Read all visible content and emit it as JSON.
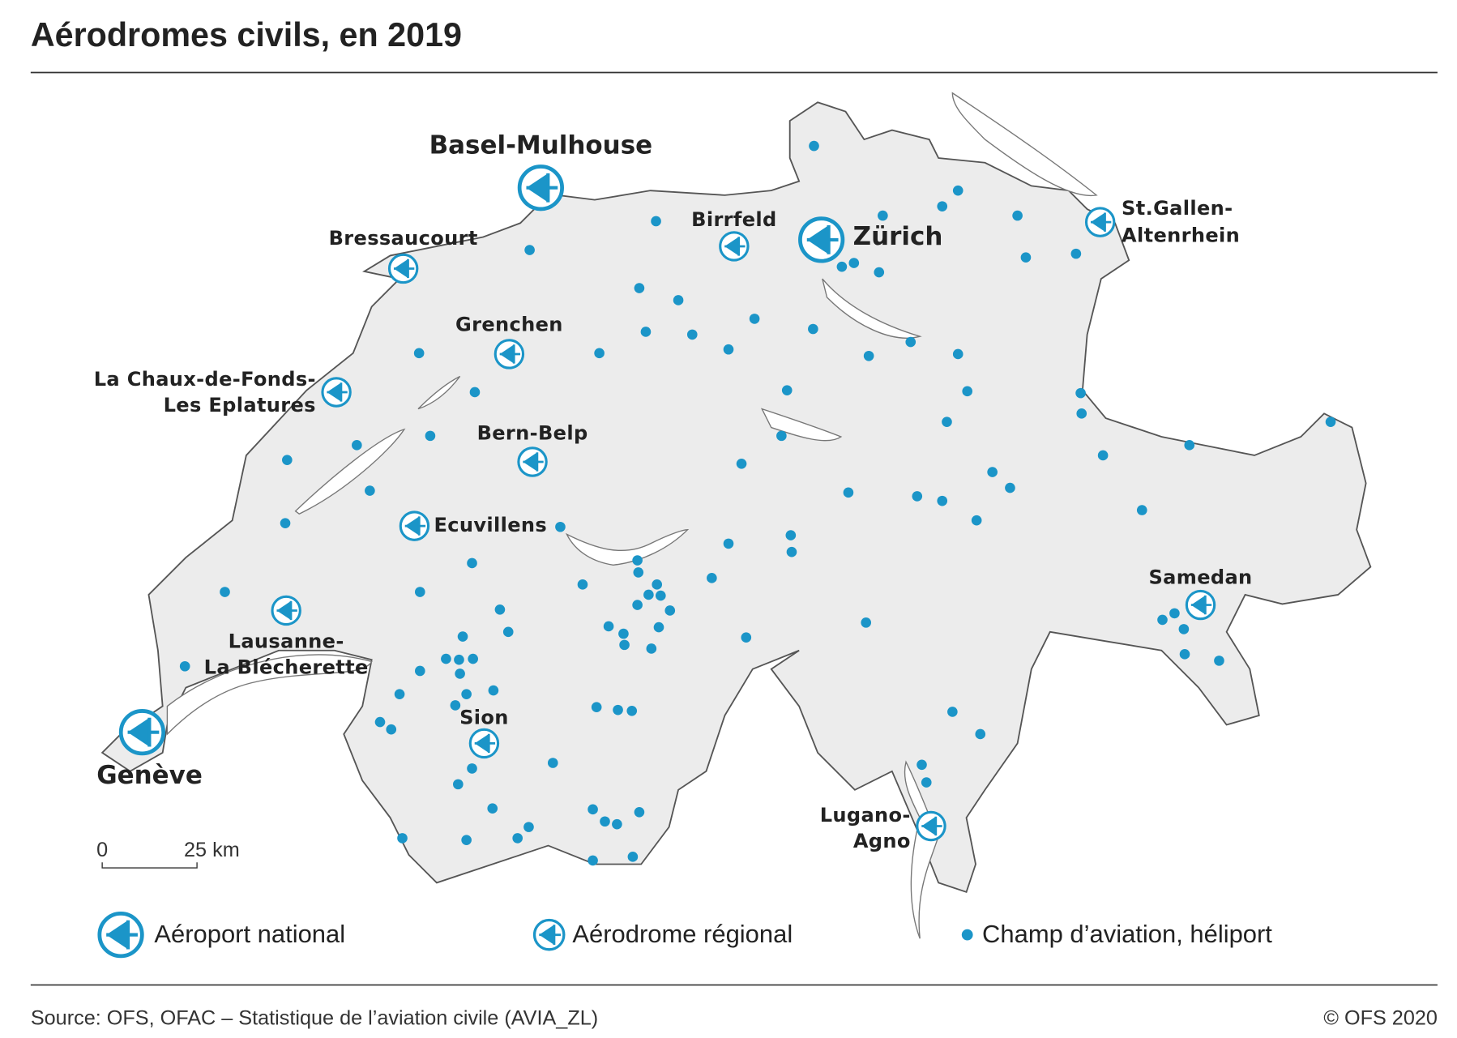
{
  "header": {
    "title": "Aérodromes civils, en 2019"
  },
  "national_airports": [
    {
      "lines": [
        "Basel-Mulhouse"
      ]
    },
    {
      "lines": [
        "Zürich"
      ]
    },
    {
      "lines": [
        "Genève"
      ]
    }
  ],
  "regional_airfields": [
    {
      "lines": [
        "Bressaucourt"
      ]
    },
    {
      "lines": [
        "Birrfeld"
      ]
    },
    {
      "lines": [
        "St.Gallen-",
        "Altenrhein"
      ]
    },
    {
      "lines": [
        "Grenchen"
      ]
    },
    {
      "lines": [
        "La Chaux-de-Fonds-",
        "Les Eplatures"
      ]
    },
    {
      "lines": [
        "Bern-Belp"
      ]
    },
    {
      "lines": [
        "Ecuvillens"
      ]
    },
    {
      "lines": [
        "Samedan"
      ]
    },
    {
      "lines": [
        "Lausanne-",
        "La Blécherette"
      ]
    },
    {
      "lines": [
        "Sion"
      ]
    },
    {
      "lines": [
        "Lugano-",
        "Agno"
      ]
    }
  ],
  "scale": {
    "start": "0",
    "end": "25 km"
  },
  "legend": {
    "items": [
      "Aéroport national",
      "Aérodrome régional",
      "Champ d’aviation, héliport"
    ]
  },
  "footer": {
    "source": "Source: OFS, OFAC – Statistique de l’aviation civile (AVIA_ZL)",
    "copyright": "© OFS 2020"
  }
}
